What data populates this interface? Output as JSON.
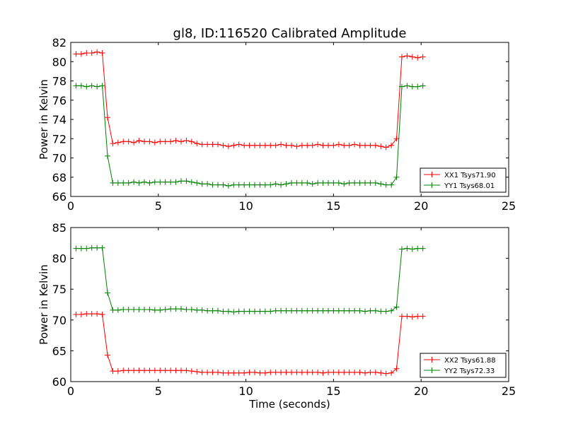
{
  "chart_data": [
    {
      "type": "line",
      "title": "gl8, ID:116520 Calibrated Amplitude",
      "xlabel": "",
      "ylabel": "Power in Kelvin",
      "xlim": [
        0,
        25
      ],
      "ylim": [
        66,
        82
      ],
      "xticks": [
        0,
        5,
        10,
        15,
        20,
        25
      ],
      "yticks": [
        66,
        68,
        70,
        72,
        74,
        76,
        78,
        80,
        82
      ],
      "grid": false,
      "legend_position": "lower-right",
      "x": [
        0.3,
        0.6,
        0.9,
        1.2,
        1.5,
        1.8,
        2.1,
        2.4,
        2.7,
        3.0,
        3.3,
        3.6,
        3.9,
        4.2,
        4.5,
        4.8,
        5.1,
        5.4,
        5.7,
        6.0,
        6.3,
        6.6,
        6.9,
        7.2,
        7.5,
        7.8,
        8.1,
        8.4,
        8.7,
        9.0,
        9.3,
        9.6,
        9.9,
        10.2,
        10.5,
        10.8,
        11.1,
        11.4,
        11.7,
        12.0,
        12.3,
        12.6,
        12.9,
        13.2,
        13.5,
        13.8,
        14.1,
        14.4,
        14.7,
        15.0,
        15.3,
        15.6,
        15.9,
        16.2,
        16.5,
        16.8,
        17.1,
        17.4,
        17.7,
        18.0,
        18.3,
        18.6,
        18.9,
        19.2,
        19.5,
        19.8,
        20.1
      ],
      "series": [
        {
          "name": "XX1 Tsys71.90",
          "color": "#ff0000",
          "values": [
            80.8,
            80.8,
            80.9,
            80.9,
            81.0,
            80.9,
            74.2,
            71.5,
            71.6,
            71.7,
            71.7,
            71.6,
            71.8,
            71.7,
            71.7,
            71.6,
            71.7,
            71.7,
            71.7,
            71.8,
            71.7,
            71.8,
            71.7,
            71.5,
            71.4,
            71.4,
            71.4,
            71.4,
            71.3,
            71.2,
            71.3,
            71.4,
            71.3,
            71.3,
            71.3,
            71.3,
            71.3,
            71.3,
            71.3,
            71.4,
            71.3,
            71.3,
            71.2,
            71.3,
            71.3,
            71.3,
            71.4,
            71.3,
            71.3,
            71.3,
            71.4,
            71.3,
            71.3,
            71.4,
            71.3,
            71.3,
            71.3,
            71.3,
            71.2,
            71.1,
            71.3,
            72.0,
            80.5,
            80.6,
            80.5,
            80.4,
            80.5
          ]
        },
        {
          "name": "YY1 Tsys68.01",
          "color": "#008000",
          "values": [
            77.5,
            77.5,
            77.4,
            77.5,
            77.4,
            77.5,
            70.2,
            67.4,
            67.4,
            67.4,
            67.4,
            67.5,
            67.4,
            67.5,
            67.4,
            67.5,
            67.5,
            67.5,
            67.5,
            67.5,
            67.6,
            67.6,
            67.5,
            67.4,
            67.3,
            67.3,
            67.2,
            67.2,
            67.2,
            67.1,
            67.2,
            67.2,
            67.2,
            67.2,
            67.2,
            67.2,
            67.2,
            67.2,
            67.3,
            67.2,
            67.3,
            67.4,
            67.4,
            67.4,
            67.4,
            67.3,
            67.4,
            67.4,
            67.4,
            67.4,
            67.4,
            67.3,
            67.4,
            67.4,
            67.4,
            67.4,
            67.4,
            67.4,
            67.3,
            67.2,
            67.2,
            68.0,
            77.4,
            77.5,
            77.4,
            77.4,
            77.5
          ]
        }
      ]
    },
    {
      "type": "line",
      "title": "",
      "xlabel": "Time (seconds)",
      "ylabel": "Power in Kelvin",
      "xlim": [
        0,
        25
      ],
      "ylim": [
        60,
        85
      ],
      "xticks": [
        0,
        5,
        10,
        15,
        20,
        25
      ],
      "yticks": [
        60,
        65,
        70,
        75,
        80,
        85
      ],
      "grid": false,
      "legend_position": "lower-right",
      "x": [
        0.3,
        0.6,
        0.9,
        1.2,
        1.5,
        1.8,
        2.1,
        2.4,
        2.7,
        3.0,
        3.3,
        3.6,
        3.9,
        4.2,
        4.5,
        4.8,
        5.1,
        5.4,
        5.7,
        6.0,
        6.3,
        6.6,
        6.9,
        7.2,
        7.5,
        7.8,
        8.1,
        8.4,
        8.7,
        9.0,
        9.3,
        9.6,
        9.9,
        10.2,
        10.5,
        10.8,
        11.1,
        11.4,
        11.7,
        12.0,
        12.3,
        12.6,
        12.9,
        13.2,
        13.5,
        13.8,
        14.1,
        14.4,
        14.7,
        15.0,
        15.3,
        15.6,
        15.9,
        16.2,
        16.5,
        16.8,
        17.1,
        17.4,
        17.7,
        18.0,
        18.3,
        18.6,
        18.9,
        19.2,
        19.5,
        19.8,
        20.1
      ],
      "series": [
        {
          "name": "XX2 Tsys61.88",
          "color": "#ff0000",
          "values": [
            70.9,
            70.9,
            71.0,
            71.0,
            71.0,
            70.9,
            64.3,
            61.7,
            61.7,
            61.8,
            61.8,
            61.8,
            61.8,
            61.8,
            61.8,
            61.8,
            61.8,
            61.8,
            61.8,
            61.8,
            61.8,
            61.8,
            61.7,
            61.6,
            61.5,
            61.5,
            61.5,
            61.5,
            61.4,
            61.4,
            61.4,
            61.4,
            61.4,
            61.5,
            61.5,
            61.4,
            61.4,
            61.5,
            61.5,
            61.5,
            61.5,
            61.5,
            61.5,
            61.5,
            61.5,
            61.5,
            61.5,
            61.4,
            61.5,
            61.5,
            61.5,
            61.5,
            61.5,
            61.5,
            61.5,
            61.4,
            61.5,
            61.5,
            61.4,
            61.3,
            61.4,
            62.1,
            70.6,
            70.6,
            70.5,
            70.6,
            70.6
          ]
        },
        {
          "name": "YY2 Tsys72.33",
          "color": "#008000",
          "values": [
            81.6,
            81.6,
            81.6,
            81.7,
            81.7,
            81.7,
            74.4,
            71.6,
            71.6,
            71.7,
            71.7,
            71.7,
            71.7,
            71.7,
            71.7,
            71.6,
            71.6,
            71.7,
            71.8,
            71.8,
            71.8,
            71.7,
            71.7,
            71.6,
            71.6,
            71.5,
            71.5,
            71.5,
            71.4,
            71.4,
            71.3,
            71.4,
            71.4,
            71.4,
            71.4,
            71.4,
            71.4,
            71.4,
            71.5,
            71.5,
            71.5,
            71.5,
            71.5,
            71.5,
            71.5,
            71.5,
            71.5,
            71.5,
            71.5,
            71.5,
            71.5,
            71.5,
            71.5,
            71.5,
            71.5,
            71.4,
            71.5,
            71.5,
            71.4,
            71.4,
            71.5,
            72.1,
            81.5,
            81.6,
            81.5,
            81.6,
            81.6
          ]
        }
      ]
    }
  ]
}
